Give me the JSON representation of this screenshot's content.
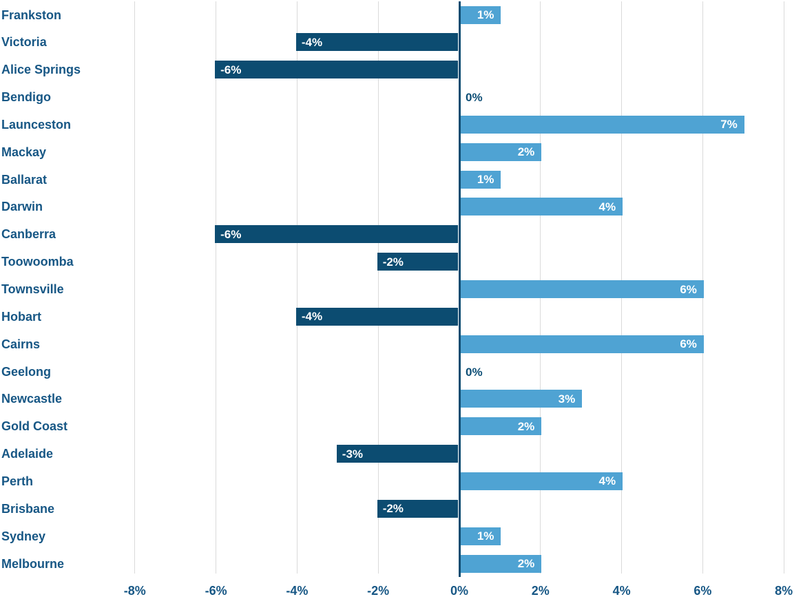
{
  "chart_data": {
    "type": "bar",
    "orientation": "horizontal",
    "title": "",
    "xlabel": "",
    "ylabel": "",
    "categories": [
      "Frankston",
      "Victoria",
      "Alice Springs",
      "Bendigo",
      "Launceston",
      "Mackay",
      "Ballarat",
      "Darwin",
      "Canberra",
      "Toowoomba",
      "Townsville",
      "Hobart",
      "Cairns",
      "Geelong",
      "Newcastle",
      "Gold Coast",
      "Adelaide",
      "Perth",
      "Brisbane",
      "Sydney",
      "Melbourne"
    ],
    "values": [
      1,
      -4,
      -6,
      0,
      7,
      2,
      1,
      4,
      -6,
      -2,
      6,
      -4,
      6,
      0,
      3,
      2,
      -3,
      4,
      -2,
      1,
      2
    ],
    "value_labels": [
      "1%",
      "-4%",
      "-6%",
      "0%",
      "7%",
      "2%",
      "1%",
      "4%",
      "-6%",
      "-2%",
      "6%",
      "-4%",
      "6%",
      "0%",
      "3%",
      "2%",
      "-3%",
      "4%",
      "-2%",
      "1%",
      "2%"
    ],
    "x_ticks": [
      -8,
      -6,
      -4,
      -2,
      0,
      2,
      4,
      6,
      8
    ],
    "x_tick_labels": [
      "-8%",
      "-6%",
      "-4%",
      "-2%",
      "0%",
      "2%",
      "4%",
      "6%",
      "8%"
    ],
    "xlim": [
      -9,
      8.5
    ],
    "grid": "vertical-gridlines-at-ticks",
    "legend": "none",
    "colors": {
      "positive_bar": "#4FA3D3",
      "negative_bar": "#0C4C71",
      "category_text": "#175785",
      "axis_tick_text": "#175785",
      "bar_value_text": "#FFFFFF",
      "zero_value_text": "#0E4F76",
      "gridline": "#DADADA",
      "zero_line": "#0C4C71",
      "background": "#FFFFFF"
    }
  }
}
